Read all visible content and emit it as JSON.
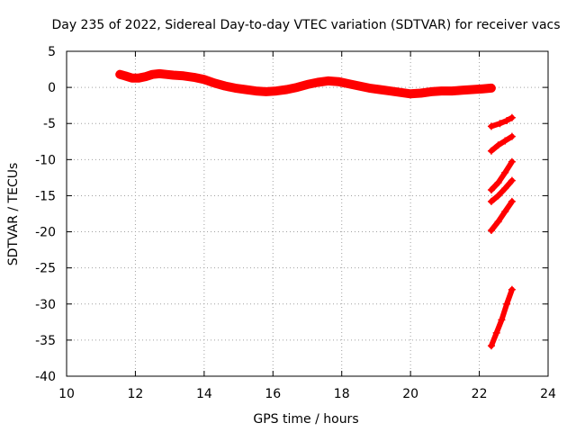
{
  "chart_data": {
    "type": "scatter",
    "title": "Day 235 of 2022, Sidereal Day-to-day VTEC variation (SDTVAR) for receiver vacs",
    "xlabel": "GPS time / hours",
    "ylabel": "SDTVAR / TECUs",
    "xlim": [
      10,
      24
    ],
    "ylim": [
      -40,
      5
    ],
    "xticks": [
      10,
      12,
      14,
      16,
      18,
      20,
      22,
      24
    ],
    "yticks": [
      5,
      0,
      -5,
      -10,
      -15,
      -20,
      -25,
      -30,
      -35,
      -40
    ],
    "grid": true,
    "legend": "none",
    "marker": "plus",
    "series_color": "#ff0000",
    "series": [
      {
        "x": [
          11.55,
          11.7,
          11.9,
          12.1,
          12.3,
          12.5,
          12.7,
          12.9,
          13.1,
          13.4,
          13.7,
          14.0,
          14.3,
          14.6,
          14.9,
          15.2,
          15.5,
          15.8,
          16.1,
          16.4,
          16.7,
          17.0,
          17.3,
          17.6,
          17.9,
          18.2,
          18.5,
          18.8,
          19.1,
          19.4,
          19.7,
          20.0,
          20.3,
          20.6,
          20.9,
          21.2,
          21.5,
          21.8,
          22.1,
          22.35
        ],
        "y": [
          1.8,
          1.6,
          1.3,
          1.3,
          1.5,
          1.8,
          1.9,
          1.8,
          1.7,
          1.6,
          1.4,
          1.1,
          0.6,
          0.2,
          -0.1,
          -0.3,
          -0.5,
          -0.6,
          -0.5,
          -0.3,
          0.0,
          0.4,
          0.7,
          0.9,
          0.8,
          0.5,
          0.2,
          -0.1,
          -0.3,
          -0.5,
          -0.7,
          -0.9,
          -0.8,
          -0.6,
          -0.5,
          -0.5,
          -0.4,
          -0.3,
          -0.2,
          -0.1
        ]
      },
      {
        "x": [
          22.35,
          22.6,
          22.8,
          22.95
        ],
        "y": [
          -5.4,
          -5.0,
          -4.6,
          -4.2
        ]
      },
      {
        "x": [
          22.35,
          22.55,
          22.75,
          22.95
        ],
        "y": [
          -8.8,
          -8.0,
          -7.4,
          -6.8
        ]
      },
      {
        "x": [
          22.35,
          22.55,
          22.75,
          22.95
        ],
        "y": [
          -14.2,
          -13.2,
          -11.8,
          -10.3
        ]
      },
      {
        "x": [
          22.35,
          22.55,
          22.75,
          22.95
        ],
        "y": [
          -15.8,
          -15.0,
          -14.0,
          -12.9
        ]
      },
      {
        "x": [
          22.35,
          22.55,
          22.75,
          22.95
        ],
        "y": [
          -19.8,
          -18.6,
          -17.2,
          -15.8
        ]
      },
      {
        "x": [
          22.35,
          22.5,
          22.65,
          22.8,
          22.95
        ],
        "y": [
          -35.8,
          -34.0,
          -32.2,
          -30.0,
          -28.0
        ]
      }
    ]
  }
}
